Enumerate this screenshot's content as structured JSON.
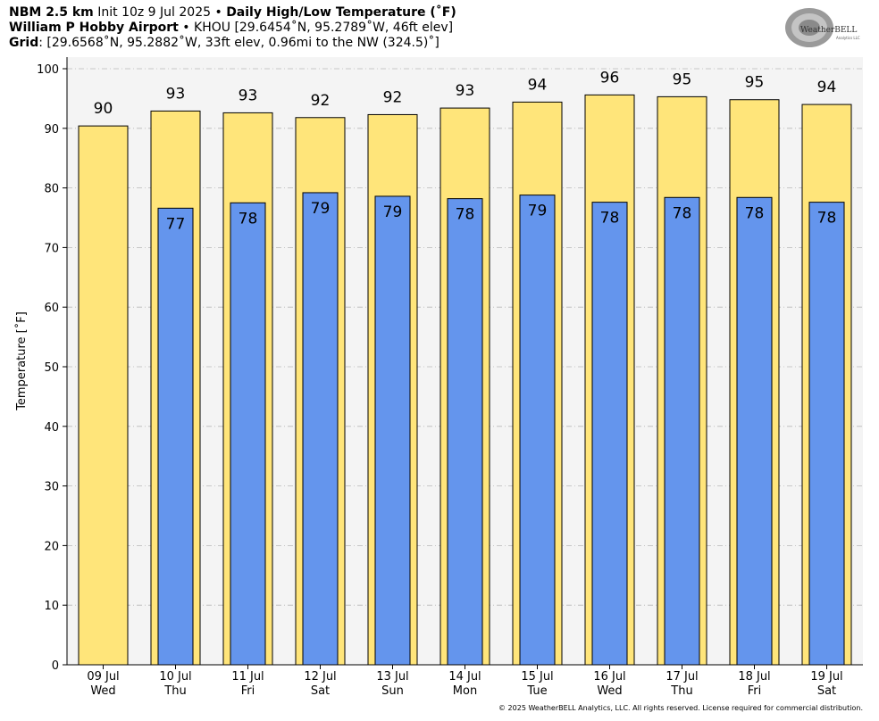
{
  "header": {
    "model": "NBM 2.5 km",
    "init": "Init 10z 9 Jul 2025",
    "sep": "•",
    "product": "Daily High/Low Temperature (˚F)",
    "station_name": "William P Hobby Airport",
    "station_info": "KHOU [29.6454˚N, 95.2789˚W, 46ft elev]",
    "grid_label": "Grid",
    "grid_info": ": [29.6568˚N, 95.2882˚W, 33ft elev, 0.96mi to the NW (324.5)˚]"
  },
  "logo": {
    "text_main": "WeatherBELL",
    "text_sub": "Analytics LLC"
  },
  "footer": {
    "copyright": "© 2025 WeatherBELL Analytics, LLC. All rights reserved. License required for commercial distribution."
  },
  "colors": {
    "high": "#ffe57a",
    "low": "#6495ed",
    "plot_bg": "#f4f4f4",
    "grid": "#b8b8b8"
  },
  "chart_data": {
    "type": "bar",
    "ylabel": "Temperature [˚F]",
    "ylim": [
      0,
      100
    ],
    "yticks": [
      0,
      10,
      20,
      30,
      40,
      50,
      60,
      70,
      80,
      90,
      100
    ],
    "grid": true,
    "categories": [
      "09 Jul",
      "10 Jul",
      "11 Jul",
      "12 Jul",
      "13 Jul",
      "14 Jul",
      "15 Jul",
      "16 Jul",
      "17 Jul",
      "18 Jul",
      "19 Jul"
    ],
    "weekdays": [
      "Wed",
      "Thu",
      "Fri",
      "Sat",
      "Sun",
      "Mon",
      "Tue",
      "Wed",
      "Thu",
      "Fri",
      "Sat"
    ],
    "series": [
      {
        "values": [
          90.4,
          92.9,
          92.6,
          91.8,
          92.3,
          93.4,
          94.4,
          95.6,
          95.3,
          94.8,
          94.0
        ],
        "labels": [
          "90",
          "93",
          "93",
          "92",
          "92",
          "93",
          "94",
          "96",
          "95",
          "95",
          "94"
        ]
      },
      {
        "values": [
          null,
          76.6,
          77.5,
          79.2,
          78.6,
          78.2,
          78.8,
          77.6,
          78.4,
          78.4,
          77.6
        ],
        "labels": [
          "",
          "77",
          "78",
          "79",
          "79",
          "78",
          "79",
          "78",
          "78",
          "78",
          "78"
        ]
      }
    ]
  }
}
